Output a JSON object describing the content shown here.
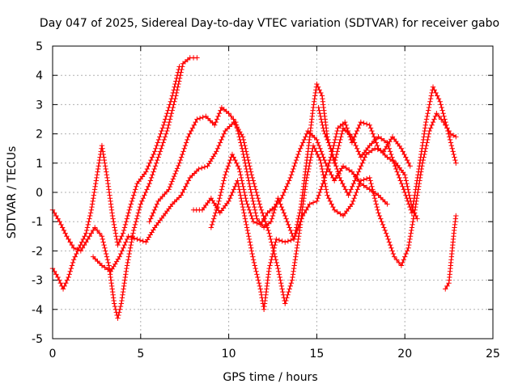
{
  "chart_data": {
    "type": "scatter",
    "title": "Day 047 of 2025, Sidereal Day-to-day VTEC variation (SDTVAR) for receiver gabo",
    "xlabel": "GPS time / hours",
    "ylabel": "SDTVAR / TECUs",
    "xlim": [
      0,
      25
    ],
    "ylim": [
      -5,
      5
    ],
    "x_ticks": [
      "0",
      "5",
      "10",
      "15",
      "20",
      "25"
    ],
    "y_ticks": [
      "-5",
      "-4",
      "-3",
      "-2",
      "-1",
      "0",
      "1",
      "2",
      "3",
      "4",
      "5"
    ],
    "grid": true,
    "legend": "none",
    "marker": "plus",
    "color": "#ff0000",
    "series": [
      {
        "name": "track-1",
        "points": [
          [
            0.0,
            -0.6
          ],
          [
            0.4,
            -1.0
          ],
          [
            0.8,
            -1.5
          ],
          [
            1.2,
            -1.9
          ],
          [
            1.6,
            -2.0
          ],
          [
            2.0,
            -1.6
          ],
          [
            2.4,
            -1.2
          ],
          [
            2.8,
            -1.5
          ],
          [
            3.2,
            -2.5
          ],
          [
            3.5,
            -3.8
          ],
          [
            3.7,
            -4.3
          ],
          [
            3.9,
            -3.8
          ],
          [
            4.2,
            -2.6
          ],
          [
            4.6,
            -1.3
          ],
          [
            5.0,
            -0.4
          ],
          [
            5.5,
            0.3
          ],
          [
            6.0,
            1.2
          ],
          [
            6.5,
            2.1
          ],
          [
            7.0,
            3.3
          ],
          [
            7.4,
            4.4
          ],
          [
            7.8,
            4.6
          ],
          [
            8.2,
            4.6
          ]
        ]
      },
      {
        "name": "track-2",
        "points": [
          [
            0.0,
            -2.6
          ],
          [
            0.3,
            -2.9
          ],
          [
            0.6,
            -3.3
          ],
          [
            0.9,
            -2.9
          ],
          [
            1.2,
            -2.3
          ],
          [
            1.5,
            -1.9
          ],
          [
            1.9,
            -1.4
          ],
          [
            2.2,
            -0.6
          ],
          [
            2.5,
            0.5
          ],
          [
            2.8,
            1.6
          ],
          [
            3.1,
            0.5
          ],
          [
            3.4,
            -0.8
          ],
          [
            3.7,
            -1.8
          ],
          [
            4.0,
            -1.4
          ],
          [
            4.4,
            -0.5
          ],
          [
            4.8,
            0.3
          ],
          [
            5.3,
            0.7
          ],
          [
            5.8,
            1.4
          ],
          [
            6.3,
            2.3
          ],
          [
            6.8,
            3.3
          ],
          [
            7.2,
            4.3
          ]
        ]
      },
      {
        "name": "track-3",
        "points": [
          [
            2.3,
            -2.2
          ],
          [
            2.8,
            -2.5
          ],
          [
            3.3,
            -2.7
          ],
          [
            3.8,
            -2.2
          ],
          [
            4.3,
            -1.5
          ],
          [
            4.8,
            -1.6
          ],
          [
            5.3,
            -1.7
          ],
          [
            5.8,
            -1.2
          ],
          [
            6.3,
            -0.8
          ],
          [
            6.8,
            -0.4
          ],
          [
            7.3,
            -0.1
          ],
          [
            7.8,
            0.5
          ],
          [
            8.3,
            0.8
          ],
          [
            8.8,
            0.9
          ],
          [
            9.3,
            1.4
          ],
          [
            9.8,
            2.1
          ],
          [
            10.3,
            2.4
          ],
          [
            10.8,
            1.9
          ],
          [
            11.3,
            0.6
          ],
          [
            11.8,
            -0.5
          ],
          [
            12.3,
            -1.4
          ],
          [
            12.8,
            -2.6
          ],
          [
            13.2,
            -3.8
          ],
          [
            13.6,
            -3.0
          ],
          [
            14.0,
            -1.4
          ],
          [
            14.4,
            0.4
          ],
          [
            14.8,
            1.6
          ],
          [
            15.2,
            1.1
          ],
          [
            15.6,
            -0.1
          ],
          [
            16.0,
            -0.6
          ],
          [
            16.5,
            -0.8
          ],
          [
            17.0,
            -0.4
          ],
          [
            17.5,
            0.4
          ],
          [
            18.0,
            0.5
          ],
          [
            18.5,
            -0.7
          ],
          [
            19.0,
            -1.5
          ],
          [
            19.4,
            -2.2
          ],
          [
            19.8,
            -2.5
          ],
          [
            20.2,
            -1.9
          ],
          [
            20.6,
            -0.5
          ],
          [
            21.0,
            1.0
          ],
          [
            21.4,
            2.1
          ],
          [
            21.8,
            2.7
          ],
          [
            22.2,
            2.4
          ],
          [
            22.6,
            2.0
          ],
          [
            22.9,
            1.9
          ]
        ]
      },
      {
        "name": "track-4",
        "points": [
          [
            5.5,
            -1.0
          ],
          [
            6.0,
            -0.3
          ],
          [
            6.6,
            0.1
          ],
          [
            7.2,
            1.0
          ],
          [
            7.7,
            1.9
          ],
          [
            8.2,
            2.5
          ],
          [
            8.7,
            2.6
          ],
          [
            9.2,
            2.3
          ],
          [
            9.6,
            2.9
          ],
          [
            10.0,
            2.7
          ],
          [
            10.4,
            2.4
          ],
          [
            10.8,
            1.4
          ],
          [
            11.2,
            0.2
          ],
          [
            11.6,
            -0.9
          ],
          [
            12.0,
            -1.2
          ],
          [
            12.4,
            -1.0
          ],
          [
            12.8,
            -0.2
          ],
          [
            13.2,
            -0.8
          ],
          [
            13.7,
            -1.6
          ],
          [
            14.1,
            -0.5
          ],
          [
            14.5,
            1.4
          ],
          [
            14.8,
            2.9
          ],
          [
            15.0,
            3.7
          ],
          [
            15.3,
            3.3
          ],
          [
            15.6,
            1.9
          ],
          [
            16.0,
            1.0
          ],
          [
            16.5,
            2.2
          ],
          [
            17.0,
            1.9
          ],
          [
            17.5,
            1.2
          ],
          [
            18.0,
            1.6
          ],
          [
            18.5,
            1.9
          ],
          [
            19.0,
            1.7
          ],
          [
            19.5,
            0.8
          ],
          [
            20.0,
            0.0
          ],
          [
            20.4,
            -0.7
          ],
          [
            20.8,
            0.8
          ],
          [
            21.2,
            2.4
          ],
          [
            21.6,
            3.6
          ],
          [
            22.0,
            3.1
          ],
          [
            22.4,
            2.2
          ],
          [
            22.9,
            1.0
          ]
        ]
      },
      {
        "name": "track-5",
        "points": [
          [
            8.0,
            -0.6
          ],
          [
            8.5,
            -0.6
          ],
          [
            9.0,
            -0.2
          ],
          [
            9.5,
            -0.7
          ],
          [
            10.0,
            -0.3
          ],
          [
            10.5,
            0.4
          ],
          [
            11.0,
            -1.1
          ],
          [
            11.4,
            -2.3
          ],
          [
            11.8,
            -3.3
          ],
          [
            12.0,
            -4.0
          ],
          [
            12.3,
            -2.6
          ],
          [
            12.7,
            -1.6
          ],
          [
            13.2,
            -1.7
          ],
          [
            13.7,
            -1.6
          ],
          [
            14.2,
            -0.8
          ],
          [
            14.6,
            -0.4
          ],
          [
            15.0,
            -0.3
          ],
          [
            15.4,
            0.4
          ],
          [
            15.8,
            1.2
          ],
          [
            16.2,
            2.2
          ],
          [
            16.6,
            2.4
          ],
          [
            17.0,
            1.7
          ],
          [
            17.5,
            2.4
          ],
          [
            18.0,
            2.3
          ],
          [
            18.5,
            1.5
          ],
          [
            19.0,
            1.2
          ],
          [
            19.5,
            1.0
          ],
          [
            20.0,
            0.6
          ],
          [
            20.4,
            -0.5
          ],
          [
            20.7,
            -0.9
          ]
        ]
      },
      {
        "name": "track-6",
        "points": [
          [
            9.0,
            -1.2
          ],
          [
            9.4,
            -0.4
          ],
          [
            9.8,
            0.6
          ],
          [
            10.2,
            1.3
          ],
          [
            10.6,
            0.8
          ],
          [
            11.0,
            -0.3
          ],
          [
            11.4,
            -1.0
          ],
          [
            11.8,
            -1.1
          ],
          [
            12.2,
            -0.7
          ],
          [
            12.6,
            -0.5
          ],
          [
            13.0,
            -0.2
          ],
          [
            13.5,
            0.5
          ],
          [
            14.0,
            1.4
          ],
          [
            14.5,
            2.1
          ],
          [
            15.0,
            1.8
          ],
          [
            15.5,
            1.0
          ],
          [
            16.0,
            0.4
          ],
          [
            16.5,
            0.9
          ],
          [
            17.0,
            0.7
          ],
          [
            17.5,
            0.3
          ],
          [
            18.0,
            0.1
          ],
          [
            18.5,
            -0.1
          ],
          [
            19.0,
            -0.4
          ]
        ]
      },
      {
        "name": "track-7",
        "points": [
          [
            15.1,
            2.9
          ],
          [
            15.4,
            2.1
          ],
          [
            15.8,
            1.5
          ],
          [
            16.3,
            0.5
          ],
          [
            16.8,
            -0.1
          ],
          [
            17.3,
            0.6
          ],
          [
            17.8,
            1.3
          ],
          [
            18.3,
            1.5
          ],
          [
            18.8,
            1.4
          ],
          [
            19.3,
            1.9
          ],
          [
            19.8,
            1.5
          ],
          [
            20.3,
            0.9
          ]
        ]
      },
      {
        "name": "track-8",
        "points": [
          [
            22.3,
            -3.3
          ],
          [
            22.5,
            -3.1
          ],
          [
            22.6,
            -2.5
          ],
          [
            22.7,
            -1.9
          ],
          [
            22.8,
            -1.3
          ],
          [
            22.9,
            -0.8
          ]
        ]
      }
    ]
  }
}
